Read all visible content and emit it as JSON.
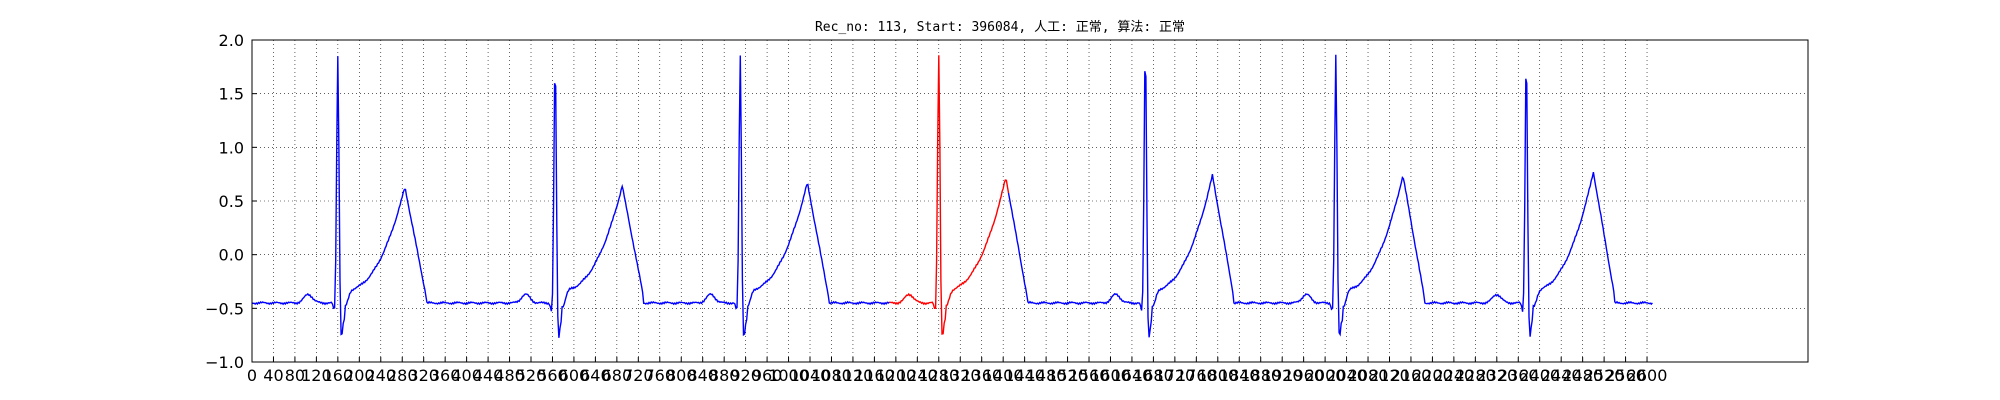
{
  "chart_data": {
    "type": "line",
    "title": "Rec_no: 113, Start: 396084, 人工: 正常, 算法: 正常",
    "xlabel": "",
    "ylabel": "",
    "xlim": [
      0,
      2900
    ],
    "ylim": [
      -1.0,
      2.0
    ],
    "grid": true,
    "x_ticks": [
      0,
      40,
      80,
      120,
      160,
      200,
      240,
      280,
      320,
      360,
      400,
      440,
      480,
      520,
      560,
      600,
      640,
      680,
      720,
      760,
      800,
      840,
      880,
      920,
      960,
      1000,
      1040,
      1080,
      1120,
      1160,
      1200,
      1240,
      1280,
      1320,
      1360,
      1400,
      1440,
      1480,
      1520,
      1560,
      1600,
      1640,
      1680,
      1720,
      1760,
      1800,
      1840,
      1880,
      1920,
      1960,
      2000,
      2040,
      2080,
      2120,
      2160,
      2200,
      2240,
      2280,
      2320,
      2360,
      2400,
      2440,
      2480,
      2520,
      2560,
      2600
    ],
    "x_tick_labels": [
      "0",
      "40",
      "80",
      "120",
      "160",
      "200",
      "240",
      "280",
      "320",
      "360",
      "400",
      "440",
      "480",
      "520",
      "560",
      "600",
      "640",
      "680",
      "720",
      "760",
      "800",
      "840",
      "880",
      "920",
      "960",
      "1000",
      "1040",
      "1080",
      "1120",
      "1160",
      "1200",
      "1240",
      "1280",
      "1320",
      "1360",
      "1400",
      "1440",
      "1480",
      "1520",
      "1560",
      "1600",
      "1640",
      "1680",
      "1720",
      "1760",
      "1800",
      "1840",
      "1880",
      "1920",
      "1960",
      "2000",
      "2040",
      "2080",
      "2120",
      "2160",
      "2200",
      "2240",
      "2280",
      "2320",
      "2360",
      "2400",
      "2440",
      "2480",
      "2520",
      "2560",
      "2600"
    ],
    "y_ticks": [
      -1.0,
      -0.5,
      0.0,
      0.5,
      1.0,
      1.5,
      2.0
    ],
    "y_tick_labels": [
      "−1.0",
      "−0.5",
      "0.0",
      "0.5",
      "1.0",
      "1.5",
      "2.0"
    ],
    "beats": [
      {
        "r": 160,
        "peak": 1.87,
        "t_peak": 0.63,
        "color": "#0000ff"
      },
      {
        "r": 565,
        "peak": 1.83,
        "t_peak": 0.64,
        "color": "#0000ff"
      },
      {
        "r": 910,
        "peak": 1.87,
        "t_peak": 0.67,
        "color": "#0000ff"
      },
      {
        "r": 1280,
        "peak": 1.88,
        "t_peak": 0.72,
        "color": "#ff0000"
      },
      {
        "r": 1665,
        "peak": 1.95,
        "t_peak": 0.74,
        "color": "#0000ff"
      },
      {
        "r": 2020,
        "peak": 1.88,
        "t_peak": 0.74,
        "color": "#0000ff"
      },
      {
        "r": 2375,
        "peak": 1.88,
        "t_peak": 0.77,
        "color": "#0000ff"
      }
    ],
    "highlight_range": [
      1190,
      1410
    ],
    "series": [
      {
        "values_desc": "ECG trace",
        "color": "#0000ff"
      },
      {
        "values_desc": "highlighted beat",
        "color": "#ff0000"
      }
    ],
    "x_end": 2610
  }
}
